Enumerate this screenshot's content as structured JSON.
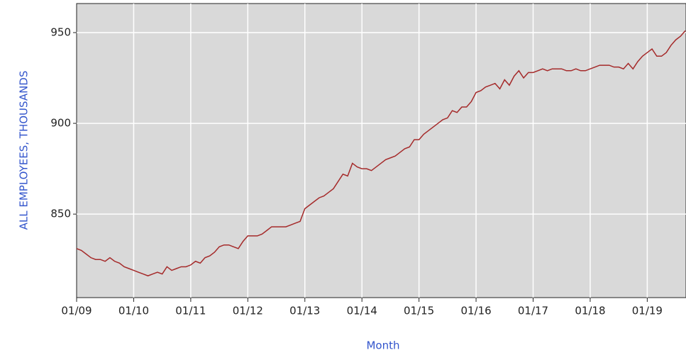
{
  "chart_data": {
    "type": "line",
    "xlabel": "Month",
    "ylabel": "ALL EMPLOYEES, THOUSANDS",
    "categories": [
      "01/09",
      null,
      null,
      null,
      null,
      null,
      null,
      null,
      null,
      null,
      null,
      null,
      "01/10",
      null,
      null,
      null,
      null,
      null,
      null,
      null,
      null,
      null,
      null,
      null,
      "01/11",
      null,
      null,
      null,
      null,
      null,
      null,
      null,
      null,
      null,
      null,
      null,
      "01/12",
      null,
      null,
      null,
      null,
      null,
      null,
      null,
      null,
      null,
      null,
      null,
      "01/13",
      null,
      null,
      null,
      null,
      null,
      null,
      null,
      null,
      null,
      null,
      null,
      "01/14",
      null,
      null,
      null,
      null,
      null,
      null,
      null,
      null,
      null,
      null,
      null,
      "01/15",
      null,
      null,
      null,
      null,
      null,
      null,
      null,
      null,
      null,
      null,
      null,
      "01/16",
      null,
      null,
      null,
      null,
      null,
      null,
      null,
      null,
      null,
      null,
      null,
      "01/17",
      null,
      null,
      null,
      null,
      null,
      null,
      null,
      null,
      null,
      null,
      null,
      "01/18",
      null,
      null,
      null,
      null,
      null,
      null,
      null,
      null,
      null,
      null,
      null,
      "01/19",
      null,
      null,
      null,
      null,
      null,
      null,
      null,
      null
    ],
    "series": [
      {
        "name": "All employees",
        "color": "#a52a2a",
        "values": [
          831,
          830,
          828,
          826,
          825,
          825,
          824,
          826,
          824,
          823,
          821,
          820,
          819,
          818,
          817,
          816,
          817,
          818,
          817,
          821,
          819,
          820,
          821,
          821,
          822,
          824,
          823,
          826,
          827,
          829,
          832,
          833,
          833,
          832,
          831,
          835,
          838,
          838,
          838,
          839,
          841,
          843,
          843,
          843,
          843,
          844,
          845,
          846,
          853,
          855,
          857,
          859,
          860,
          862,
          864,
          868,
          872,
          871,
          878,
          876,
          875,
          875,
          874,
          876,
          878,
          880,
          881,
          882,
          884,
          886,
          887,
          891,
          891,
          894,
          896,
          898,
          900,
          902,
          903,
          907,
          906,
          909,
          909,
          912,
          917,
          918,
          920,
          921,
          922,
          919,
          924,
          921,
          926,
          929,
          925,
          928,
          928,
          929,
          930,
          929,
          930,
          930,
          930,
          929,
          929,
          930,
          929,
          929,
          930,
          931,
          932,
          932,
          932,
          931,
          931,
          930,
          933,
          930,
          934,
          937,
          939,
          941,
          937,
          937,
          939,
          943,
          946,
          948,
          951
        ]
      }
    ],
    "ylim": [
      804,
      966
    ],
    "yticks": [
      850,
      900,
      950
    ],
    "grid": true
  }
}
